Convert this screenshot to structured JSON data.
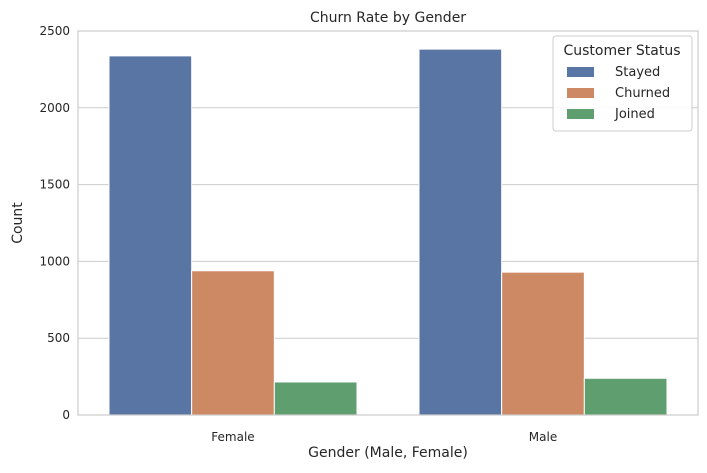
{
  "chart_data": {
    "type": "bar",
    "title": "Churn Rate by Gender",
    "xlabel": "Gender (Male, Female)",
    "ylabel": "Count",
    "categories": [
      "Female",
      "Male"
    ],
    "series": [
      {
        "name": "Stayed",
        "values": [
          2338,
          2382
        ],
        "color": "#5875a4"
      },
      {
        "name": "Churned",
        "values": [
          939,
          930
        ],
        "color": "#cc8963"
      },
      {
        "name": "Joined",
        "values": [
          215,
          239
        ],
        "color": "#5f9e6e"
      }
    ],
    "ylim": [
      0,
      2500
    ],
    "yticks": [
      0,
      500,
      1000,
      1500,
      2000,
      2500
    ],
    "grid": true,
    "legend": {
      "title": "Customer Status",
      "position": "top-right"
    }
  }
}
